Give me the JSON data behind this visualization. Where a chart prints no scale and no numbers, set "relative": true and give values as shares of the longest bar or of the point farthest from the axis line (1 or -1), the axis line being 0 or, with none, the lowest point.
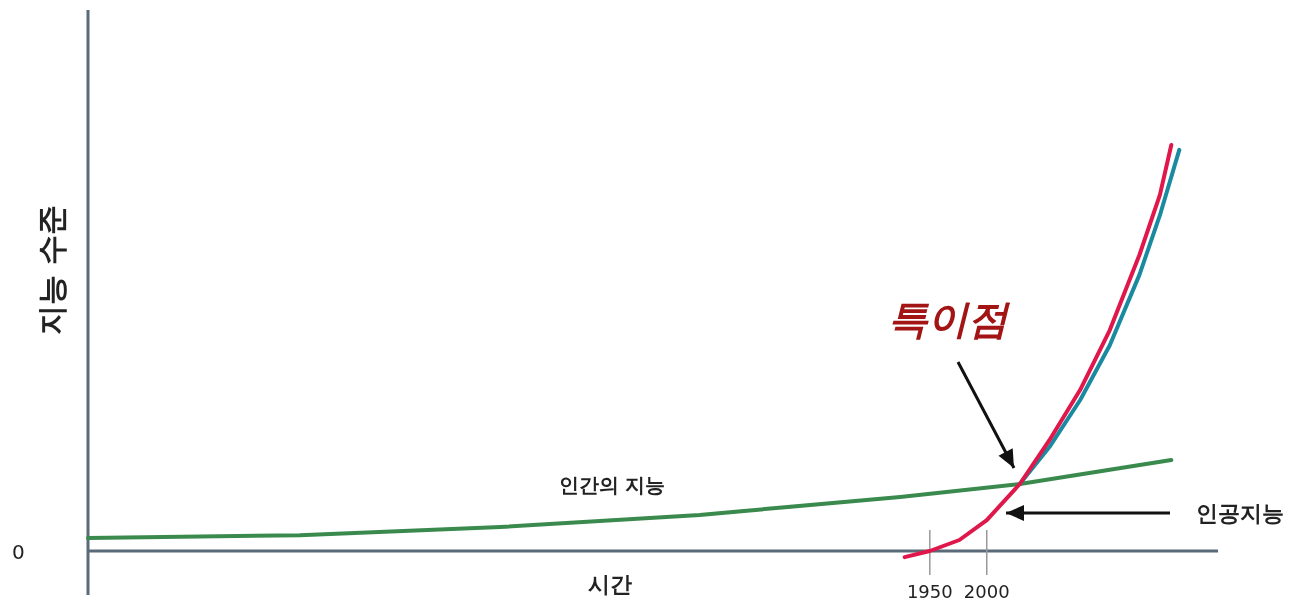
{
  "chart_data": {
    "type": "line",
    "relative": true,
    "xlabel": "시간",
    "ylabel": "지능 수준",
    "xlim": [
      1211,
      2203
    ],
    "xticks": [
      1950,
      2000
    ],
    "series": [
      {
        "name": "인간의 지능",
        "color": "#3a8a4e",
        "x": [
          1211,
          1397,
          1573,
          1748,
          1924,
          2029,
          2162
        ],
        "values": [
          0.032,
          0.039,
          0.059,
          0.089,
          0.133,
          0.165,
          0.224
        ]
      },
      {
        "color": "#e0174a",
        "x": [
          1928,
          1950,
          1976,
          2000,
          2029,
          2055,
          2082,
          2108,
          2134,
          2152,
          2162
        ],
        "values": [
          -0.015,
          0,
          0.027,
          0.076,
          0.165,
          0.273,
          0.397,
          0.544,
          0.729,
          0.877,
          1.0
        ]
      },
      {
        "color": "#1a8aa0",
        "x": [
          2029,
          2055,
          2082,
          2108,
          2134,
          2152,
          2169
        ],
        "values": [
          0.165,
          0.256,
          0.372,
          0.507,
          0.68,
          0.827,
          0.988
        ]
      }
    ],
    "annotations": [
      "0",
      "특이점",
      "인공지능"
    ]
  }
}
